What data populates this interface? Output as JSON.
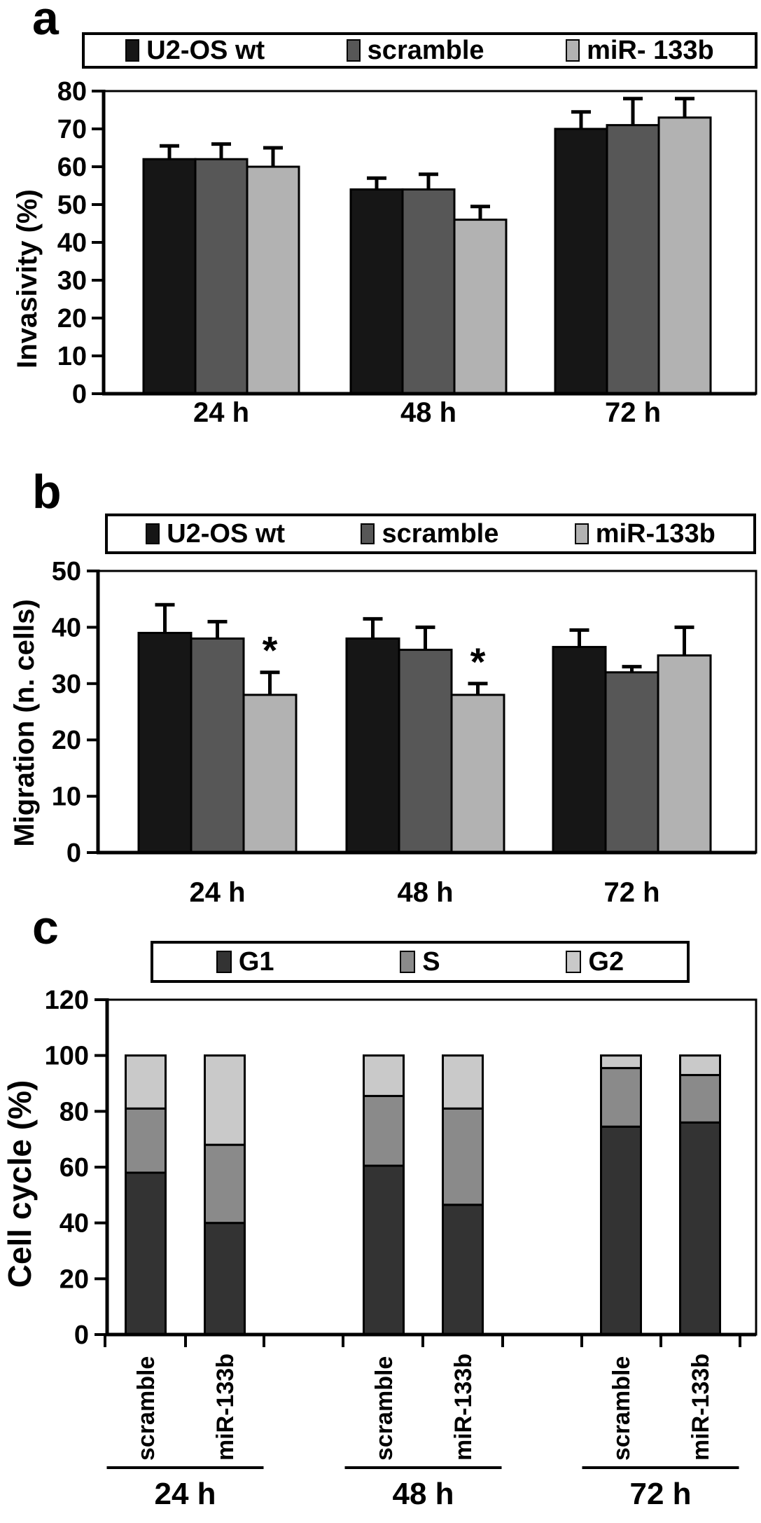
{
  "figure": {
    "background": "#ffffff",
    "panels": [
      {
        "id": "a",
        "letter": "a"
      },
      {
        "id": "b",
        "letter": "b"
      },
      {
        "id": "c",
        "letter": "c"
      }
    ]
  },
  "chart_data": [
    {
      "panel": "a",
      "type": "bar",
      "title": "",
      "xlabel": "",
      "ylabel": "Invasivity (%)",
      "ylim": [
        0,
        80
      ],
      "yticks": [
        0,
        10,
        20,
        30,
        40,
        50,
        60,
        70,
        80
      ],
      "categories": [
        "24 h",
        "48 h",
        "72 h"
      ],
      "legend_position": "top",
      "grid": false,
      "series": [
        {
          "name": "U2-OS wt",
          "color": "#161616",
          "values": [
            62,
            54,
            70
          ],
          "errors": [
            3.5,
            3,
            4.5
          ]
        },
        {
          "name": "scramble",
          "color": "#575757",
          "values": [
            62,
            54,
            71
          ],
          "errors": [
            4,
            4,
            7
          ]
        },
        {
          "name": "miR- 133b",
          "color": "#b2b2b2",
          "values": [
            60,
            46,
            73
          ],
          "errors": [
            5,
            3.5,
            5
          ]
        }
      ],
      "significance": []
    },
    {
      "panel": "b",
      "type": "bar",
      "title": "",
      "xlabel": "",
      "ylabel": "Migration (n. cells)",
      "ylim": [
        0,
        50
      ],
      "yticks": [
        0,
        10,
        20,
        30,
        40,
        50
      ],
      "categories": [
        "24 h",
        "48 h",
        "72 h"
      ],
      "legend_position": "top",
      "grid": false,
      "series": [
        {
          "name": "U2-OS wt",
          "color": "#161616",
          "values": [
            39,
            38,
            36.5
          ],
          "errors": [
            5,
            3.5,
            3
          ]
        },
        {
          "name": "scramble",
          "color": "#575757",
          "values": [
            38,
            36,
            32
          ],
          "errors": [
            3,
            4,
            1
          ]
        },
        {
          "name": "miR-133b",
          "color": "#b2b2b2",
          "values": [
            28,
            28,
            35
          ],
          "errors": [
            4,
            2,
            5
          ]
        }
      ],
      "significance": [
        {
          "series": "miR-133b",
          "category": "24 h",
          "marker": "*"
        },
        {
          "series": "miR-133b",
          "category": "48 h",
          "marker": "*"
        }
      ]
    },
    {
      "panel": "c",
      "type": "stacked_bar",
      "title": "",
      "xlabel": "",
      "ylabel": "Cell cycle (%)",
      "ylim": [
        0,
        120
      ],
      "yticks": [
        0,
        20,
        40,
        60,
        80,
        100,
        120
      ],
      "groups": [
        "24 h",
        "48 h",
        "72 h"
      ],
      "bar_labels": [
        "scramble",
        "miR-133b"
      ],
      "legend_position": "top",
      "grid": false,
      "series": [
        {
          "name": "G1",
          "color": "#333333",
          "values": [
            58,
            40,
            60.5,
            46.5,
            74.5,
            76
          ]
        },
        {
          "name": "S",
          "color": "#8a8a8a",
          "values": [
            23,
            28,
            25,
            34.5,
            21,
            17
          ]
        },
        {
          "name": "G2",
          "color": "#c9c9c9",
          "values": [
            19,
            32,
            14.5,
            19,
            4.5,
            7
          ]
        }
      ],
      "stack_totals": [
        100,
        100,
        100,
        100,
        100,
        100
      ]
    }
  ]
}
